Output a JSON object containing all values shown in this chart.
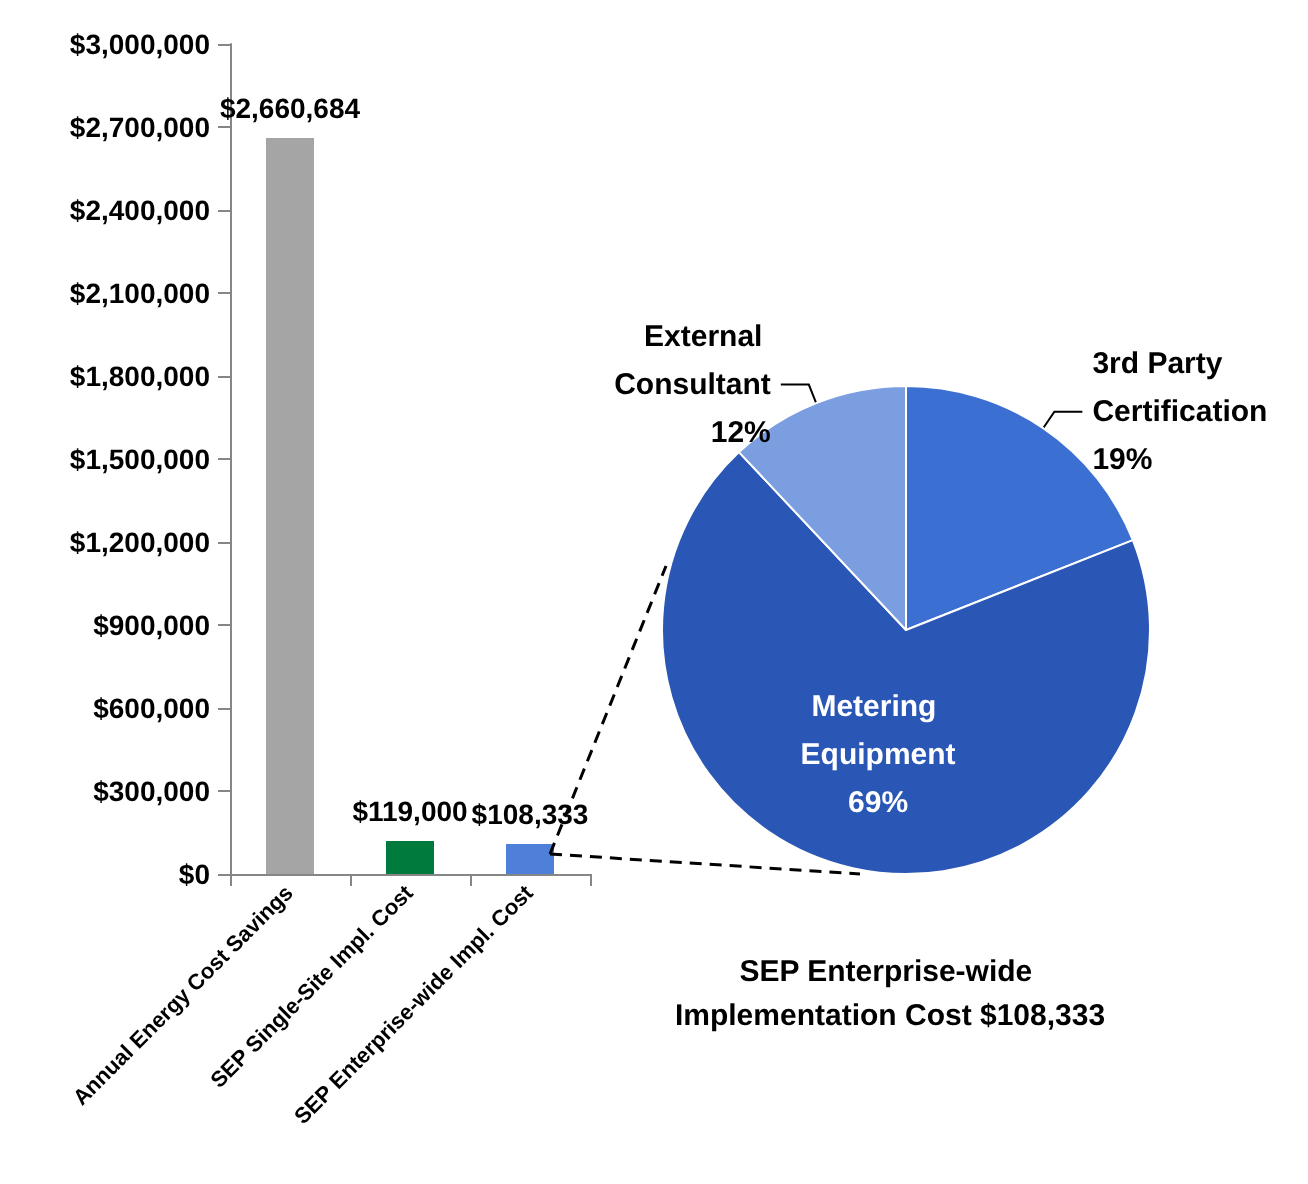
{
  "chart_data": [
    {
      "type": "bar",
      "categories": [
        "Annual Energy Cost Savings",
        "SEP Single-Site Impl. Cost",
        "SEP Enterprise-wide Impl. Cost"
      ],
      "values": [
        2660684,
        119000,
        108333
      ],
      "colors": [
        "#a5a5a5",
        "#007a3d",
        "#4e7fd9"
      ],
      "value_labels": [
        "$2,660,684",
        "$119,000",
        "$108,333"
      ],
      "ylim": [
        0,
        3000000
      ],
      "yticks": [
        {
          "value": 0,
          "label": "$0"
        },
        {
          "value": 300000,
          "label": "$300,000"
        },
        {
          "value": 600000,
          "label": "$600,000"
        },
        {
          "value": 900000,
          "label": "$900,000"
        },
        {
          "value": 1200000,
          "label": "$1,200,000"
        },
        {
          "value": 1500000,
          "label": "$1,500,000"
        },
        {
          "value": 1800000,
          "label": "$1,800,000"
        },
        {
          "value": 2100000,
          "label": "$2,100,000"
        },
        {
          "value": 2400000,
          "label": "$2,400,000"
        },
        {
          "value": 2700000,
          "label": "$2,700,000"
        },
        {
          "value": 3000000,
          "label": "$3,000,000"
        }
      ],
      "grid": false
    },
    {
      "type": "pie",
      "title": "SEP Enterprise-wide Implementation Cost $108,333",
      "categories": [
        "3rd Party Certification",
        "Metering Equipment",
        "External Consultant"
      ],
      "values": [
        19,
        69,
        12
      ],
      "colors": [
        "#3c6fd2",
        "#2a56b5",
        "#7b9ee0"
      ],
      "value_labels": [
        "19%",
        "69%",
        "12%"
      ]
    }
  ]
}
